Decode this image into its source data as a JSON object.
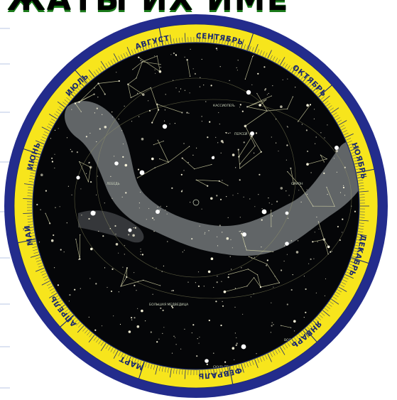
{
  "header_text": "ЖАТЫ ИХ ИМЕ",
  "colors": {
    "outer_ring": "#232c8c",
    "scale_ring": "#f7e51c",
    "sky": "#050608",
    "milky_way": "#6c7072",
    "star": "#fffbe0",
    "constellation_line": "#d8d8a8"
  },
  "months": [
    "СЕНТЯБРЬ",
    "ОКТЯБРЬ",
    "НОЯБРЬ",
    "ДЕКАБРЬ",
    "ЯНВАРЬ",
    "ФЕВРАЛЬ",
    "МАРТ",
    "АПРЕЛЬ",
    "МАЙ",
    "ИЮНЬ",
    "ИЮЛЬ",
    "АВГУСТ"
  ],
  "constellation_labels": [
    "СКУЛЬПТОР",
    "ВОДОЛЕЙ",
    "КАССИОПЕЯ",
    "БОЛЬШАЯ МЕДВЕДИЦА",
    "ЛЕБЕДЬ",
    "ОРИОН",
    "ПЕРСЕЙ"
  ]
}
